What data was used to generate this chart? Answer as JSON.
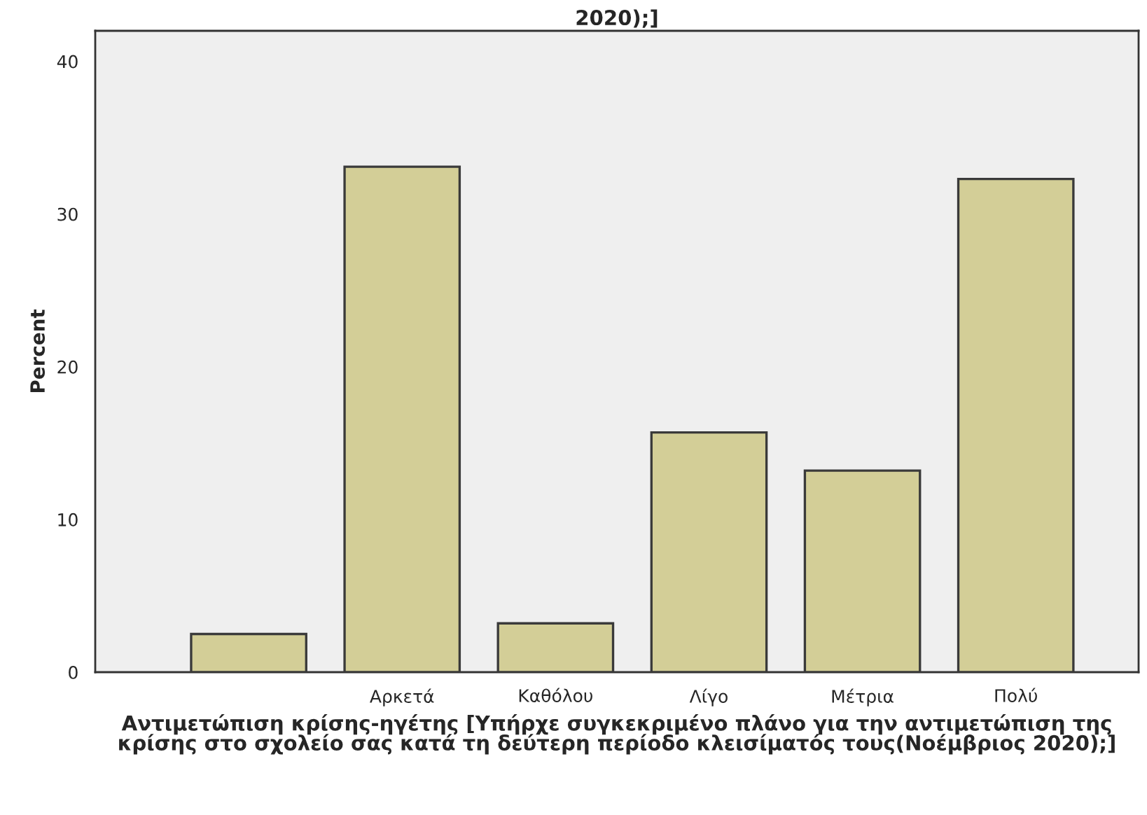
{
  "chart_data": {
    "type": "bar",
    "title": "2020);]",
    "xlabel": "Αντιμετώπιση κρίσης-ηγέτης [Υπήρχε συγκεκριμένο πλάνο για την αντιμετώπιση της κρίσης στο σχολείο σας κατά τη δεύτερη περίοδο κλεισίματός τους(Νοέμβριος 2020);]",
    "ylabel": "Percent",
    "categories": [
      null,
      "Αρκετά",
      "Καθόλου",
      "Λίγο",
      "Μέτρια",
      "Πολύ"
    ],
    "values": [
      2.5,
      33.1,
      3.2,
      15.7,
      13.2,
      32.3
    ],
    "color": "#d3ce97",
    "ylim": [
      0,
      42
    ],
    "yticks": [
      0,
      10,
      20,
      30,
      40
    ],
    "grid": false,
    "legend": false
  }
}
